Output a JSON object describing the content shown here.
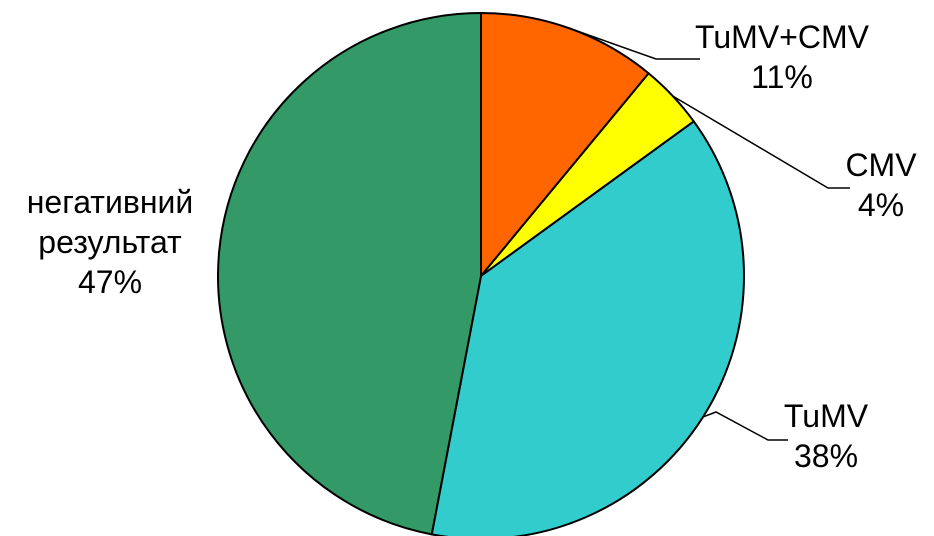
{
  "chart_data": {
    "type": "pie",
    "title": "",
    "slices": [
      {
        "label_lines": [
          "TuMV+CMV"
        ],
        "percent_label": "11%",
        "value": 11,
        "color": "#FF6600"
      },
      {
        "label_lines": [
          "CMV"
        ],
        "percent_label": "4%",
        "value": 4,
        "color": "#FFFF00"
      },
      {
        "label_lines": [
          "TuMV"
        ],
        "percent_label": "38%",
        "value": 38,
        "color": "#33CCCC"
      },
      {
        "label_lines": [
          "негативний",
          "результат"
        ],
        "percent_label": "47%",
        "value": 47,
        "color": "#339966"
      }
    ],
    "start_angle_deg": 0,
    "direction": "clockwise",
    "legend": "none",
    "slice_border_color": "#000000"
  }
}
